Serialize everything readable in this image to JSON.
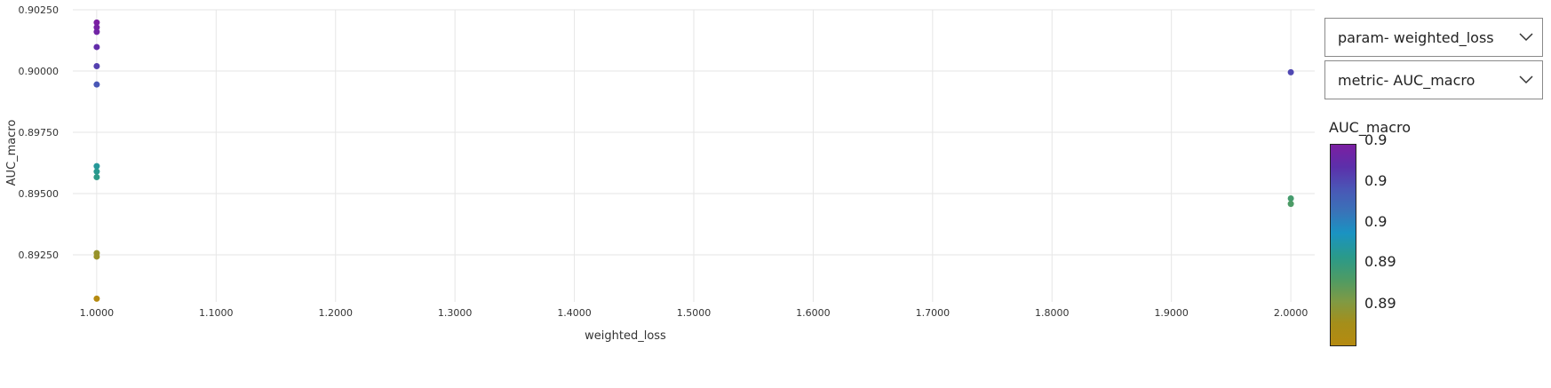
{
  "colors": {
    "gradient": [
      "#7b1fa2",
      "#5c2faa",
      "#4a56b6",
      "#3a72b8",
      "#1a93c2",
      "#2a9a8a",
      "#4d9b65",
      "#7f9a44",
      "#a58e1a",
      "#b58a10"
    ]
  },
  "controls": {
    "param_dropdown": "param- weighted_loss",
    "metric_dropdown": "metric- AUC_macro",
    "chevron_icon": "chevron-down-icon"
  },
  "colorbar": {
    "title": "AUC_macro",
    "tick_labels": [
      "0.9",
      "0.9",
      "0.9",
      "0.89",
      "0.89"
    ]
  },
  "chart_data": {
    "type": "scatter",
    "xlabel": "weighted_loss",
    "ylabel": "AUC_macro",
    "xlim": [
      0.98,
      2.02
    ],
    "ylim": [
      0.89058,
      0.9025
    ],
    "x_ticks": [
      "1.0000",
      "1.1000",
      "1.2000",
      "1.3000",
      "1.4000",
      "1.5000",
      "1.6000",
      "1.7000",
      "1.8000",
      "1.9000",
      "2.0000"
    ],
    "y_ticks": [
      "0.89250",
      "0.89500",
      "0.89750",
      "0.90000",
      "0.90250"
    ],
    "grid": true,
    "color_range": [
      0.8908,
      0.902
    ],
    "points": [
      {
        "x": 1.0,
        "y": 0.90198
      },
      {
        "x": 1.0,
        "y": 0.90178
      },
      {
        "x": 1.0,
        "y": 0.9016
      },
      {
        "x": 1.0,
        "y": 0.90098
      },
      {
        "x": 1.0,
        "y": 0.9002
      },
      {
        "x": 1.0,
        "y": 0.89945
      },
      {
        "x": 1.0,
        "y": 0.89612
      },
      {
        "x": 1.0,
        "y": 0.8959
      },
      {
        "x": 1.0,
        "y": 0.89567
      },
      {
        "x": 1.0,
        "y": 0.89257
      },
      {
        "x": 1.0,
        "y": 0.89243
      },
      {
        "x": 1.0,
        "y": 0.89071
      },
      {
        "x": 2.0,
        "y": 0.89995
      },
      {
        "x": 2.0,
        "y": 0.8948
      },
      {
        "x": 2.0,
        "y": 0.89458
      }
    ]
  }
}
